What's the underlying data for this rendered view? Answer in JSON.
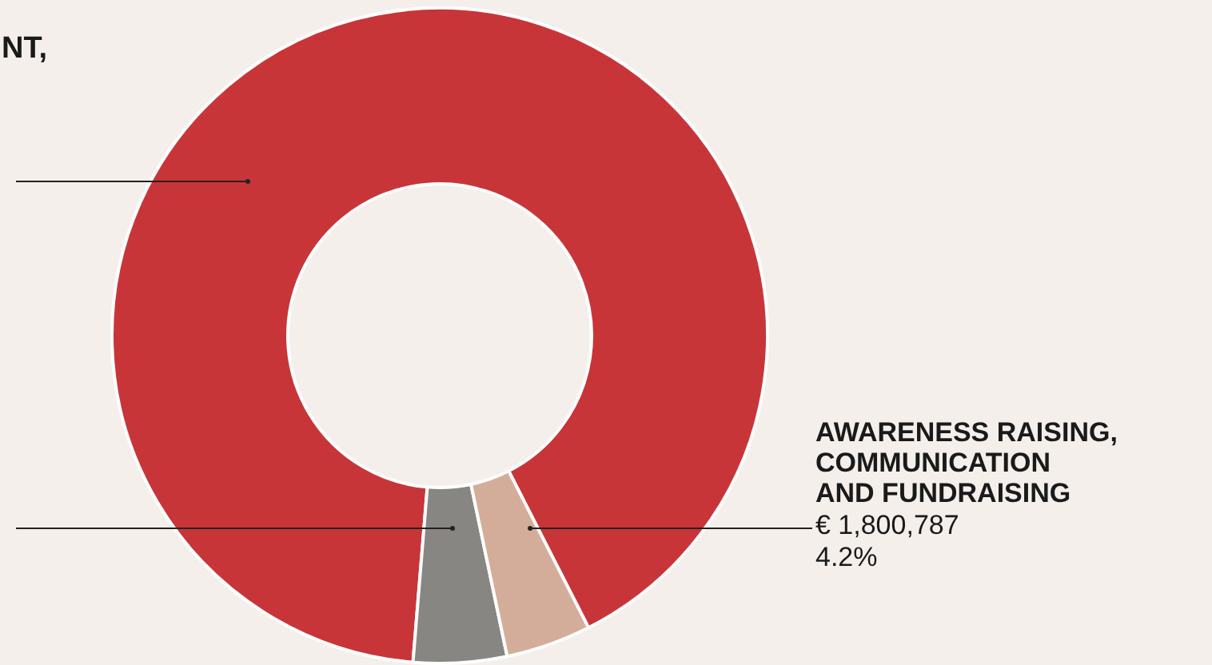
{
  "chart_data": {
    "type": "donut",
    "categories": [
      null,
      null,
      "AWARENESS RAISING, COMMUNICATION AND FUNDRAISING"
    ],
    "values": [
      91.2,
      4.6,
      4.2
    ],
    "colors": [
      "#c83538",
      "#878683",
      "#d4ad9a"
    ],
    "value_labels": [
      null,
      null,
      "4.2%"
    ],
    "annotations": [
      "NT,",
      "€ 1,800,787"
    ],
    "legend": false
  }
}
